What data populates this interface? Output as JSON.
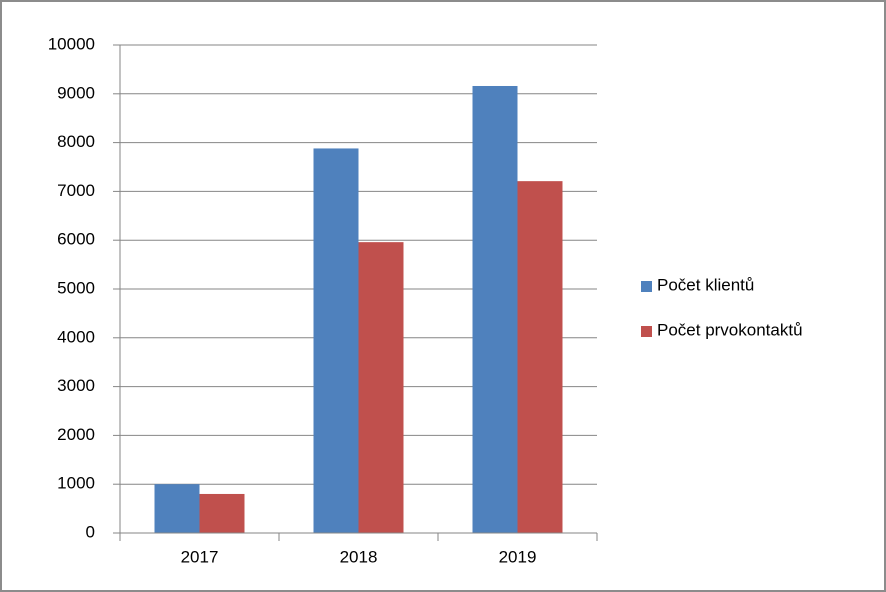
{
  "chart_data": {
    "type": "bar",
    "categories": [
      "2017",
      "2018",
      "2019"
    ],
    "series": [
      {
        "name": "Počet klientů",
        "color": "#4f81bd",
        "values": [
          1000,
          7880,
          9160
        ]
      },
      {
        "name": "Počet prvokontaktů",
        "color": "#c0504d",
        "values": [
          800,
          5960,
          7210
        ]
      }
    ],
    "ylim": [
      0,
      10000
    ],
    "yticks": [
      0,
      1000,
      2000,
      3000,
      4000,
      5000,
      6000,
      7000,
      8000,
      9000,
      10000
    ],
    "grid": true,
    "legend": "right"
  }
}
